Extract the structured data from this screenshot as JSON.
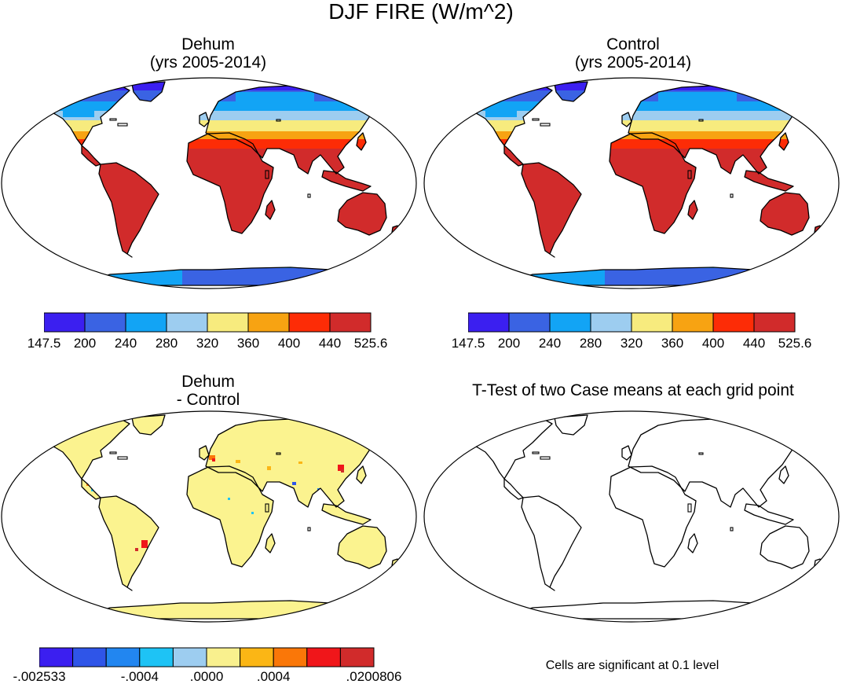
{
  "title": "DJF FIRE (W/m^2)",
  "panels": {
    "top_left": {
      "title_line1": "Dehum",
      "title_line2": "(yrs 2005-2014)"
    },
    "top_right": {
      "title_line1": "Control",
      "title_line2": "(yrs 2005-2014)"
    },
    "bottom_left": {
      "title_line1": "Dehum",
      "title_line2": "- Control"
    },
    "bottom_right": {
      "title": "T-Test of two Case means at each grid point"
    }
  },
  "colorbars": {
    "fields": {
      "colors": [
        "#3b1ff0",
        "#3a63e3",
        "#12a4f5",
        "#9dcdf0",
        "#f7eb7e",
        "#f7a312",
        "#fd2c06",
        "#d12b2b"
      ],
      "labels": [
        "147.5",
        "200",
        "240",
        "280",
        "320",
        "360",
        "400",
        "440",
        "525.6"
      ]
    },
    "difference": {
      "colors": [
        "#3b1ff0",
        "#2f55e8",
        "#2286f0",
        "#1ec3f5",
        "#9dcdf0",
        "#f9f08e",
        "#fbb615",
        "#fa7708",
        "#f0161a",
        "#d12b2b"
      ],
      "labels": [
        "-.002533",
        "-.0004",
        ".0000",
        ".0004",
        ".0200806"
      ]
    }
  },
  "footnote": "Cells are significant at 0.1 level",
  "colors": {
    "ocean": "#ffffff",
    "coast": "#000000",
    "tropics_warm": "#d12b2b",
    "diff_fill": "#fbf38f"
  }
}
